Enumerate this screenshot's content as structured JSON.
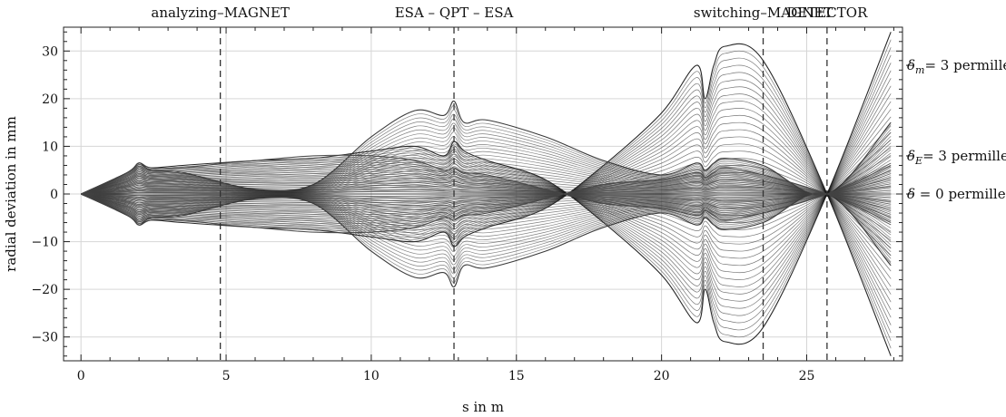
{
  "chart_data": {
    "type": "line",
    "xlabel": "s in m",
    "ylabel": "radial deviation in mm",
    "xlim": [
      -0.6,
      28.3
    ],
    "ylim": [
      -35,
      35
    ],
    "x_ticks": [
      0,
      5,
      10,
      15,
      20,
      25
    ],
    "y_ticks": [
      -30,
      -20,
      -10,
      0,
      10,
      20,
      30
    ],
    "grid": true,
    "elements": [
      {
        "label": "analyzing–MAGNET",
        "s": 4.8
      },
      {
        "label": "ESA – QPT – ESA",
        "s": 12.85
      },
      {
        "label": "switching–MAGNET",
        "s": 23.5
      },
      {
        "label": "DETECTOR",
        "s": 25.7
      }
    ],
    "bundles": [
      {
        "label_parts": [
          "δ",
          "m",
          "= 3 permille"
        ],
        "label_y": 27,
        "color": "#1a1a1a",
        "count": 22,
        "s": [
          0,
          1.6,
          2.0,
          2.4,
          3.5,
          6,
          8,
          10,
          11.5,
          12.5,
          12.85,
          13.2,
          14,
          16,
          18,
          20,
          21.2,
          21.5,
          21.8,
          22.2,
          23.5,
          25.7,
          27.9
        ],
        "y": [
          0,
          4.5,
          6.5,
          5.5,
          6,
          7,
          7.5,
          9,
          10,
          8,
          11,
          9,
          7,
          3,
          -6,
          -17,
          -27,
          -20,
          -27,
          -31,
          -28,
          0,
          34
        ]
      },
      {
        "label_parts": [
          "δ",
          "E",
          "= 3 permille"
        ],
        "label_y": 8,
        "color": "#2e2e2e",
        "count": 22,
        "s": [
          0,
          1.6,
          2.0,
          2.4,
          3.5,
          6,
          8,
          10,
          11.5,
          12.5,
          12.85,
          13.2,
          14,
          16,
          18,
          20,
          21.2,
          21.5,
          21.8,
          22.2,
          23.5,
          25.7,
          27.9
        ],
        "y": [
          0,
          4.5,
          6.5,
          5,
          4.5,
          1,
          2,
          12,
          17.5,
          16.5,
          19.5,
          15,
          15.5,
          12,
          7,
          4,
          6.5,
          5,
          6.5,
          7.5,
          6,
          0,
          15
        ]
      },
      {
        "label_parts": [
          "δ",
          "",
          " = 0 permille"
        ],
        "label_y": 0,
        "color": "#444444",
        "count": 18,
        "s": [
          0,
          1.6,
          2.0,
          2.4,
          3.5,
          5,
          6,
          8,
          10,
          11.5,
          12.5,
          12.85,
          13.2,
          14,
          16,
          18,
          20,
          21.2,
          21.5,
          21.8,
          22.2,
          23.5,
          25.7,
          27.9
        ],
        "y": [
          0,
          4.5,
          6.5,
          5.5,
          5.5,
          6.5,
          7,
          8,
          8,
          7,
          5,
          5.5,
          4.5,
          4,
          1,
          -2,
          -3,
          -4.5,
          -3.5,
          -4.5,
          -5.5,
          -4,
          0,
          6
        ]
      }
    ]
  }
}
